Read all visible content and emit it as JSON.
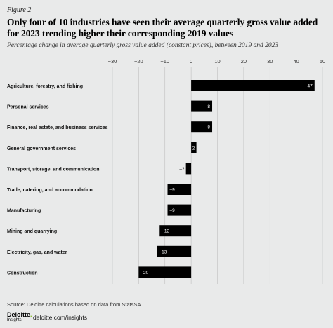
{
  "figure_label": "Figure 2",
  "brand": {
    "name": "Deloitte",
    "dot": ".",
    "sub": "Insights",
    "site": "deloitte.com/insights"
  },
  "source": "Source: Deloitte calculations based on data from StatsSA.",
  "colors": {
    "background": "#e9eaea",
    "bar": "#000000",
    "grid": "#bfbfbf",
    "axis_text": "#333333",
    "label_white": "#ffffff"
  },
  "chart_data": {
    "type": "bar",
    "orientation": "horizontal",
    "title": "Only four of 10 industries have seen their average quarterly gross value added for 2023 trending higher their corresponding 2019 values",
    "subtitle": "Percentage change in average quarterly gross value added (constant prices), between 2019 and 2023",
    "xlabel": "",
    "ylabel": "",
    "xlim": [
      -30,
      50
    ],
    "xticks": [
      -30,
      -20,
      -10,
      0,
      10,
      20,
      30,
      40,
      50
    ],
    "xtick_labels": [
      "−30",
      "−20",
      "−10",
      "0",
      "10",
      "20",
      "30",
      "40",
      "50"
    ],
    "grid": true,
    "categories": [
      "Agriculture, forestry, and fishing",
      "Personal services",
      "Finance, real estate, and business services",
      "General government services",
      "Transport, storage, and communication",
      "Trade, catering, and accommodation",
      "Manufacturing",
      "Mining and quarrying",
      "Electricity, gas, and water",
      "Construction"
    ],
    "values": [
      47,
      8,
      8,
      2,
      -2,
      -9,
      -9,
      -12,
      -13,
      -20
    ],
    "value_labels": [
      "47",
      "8",
      "8",
      "2",
      "–2",
      "–9",
      "–9",
      "–12",
      "–13",
      "–20"
    ]
  }
}
